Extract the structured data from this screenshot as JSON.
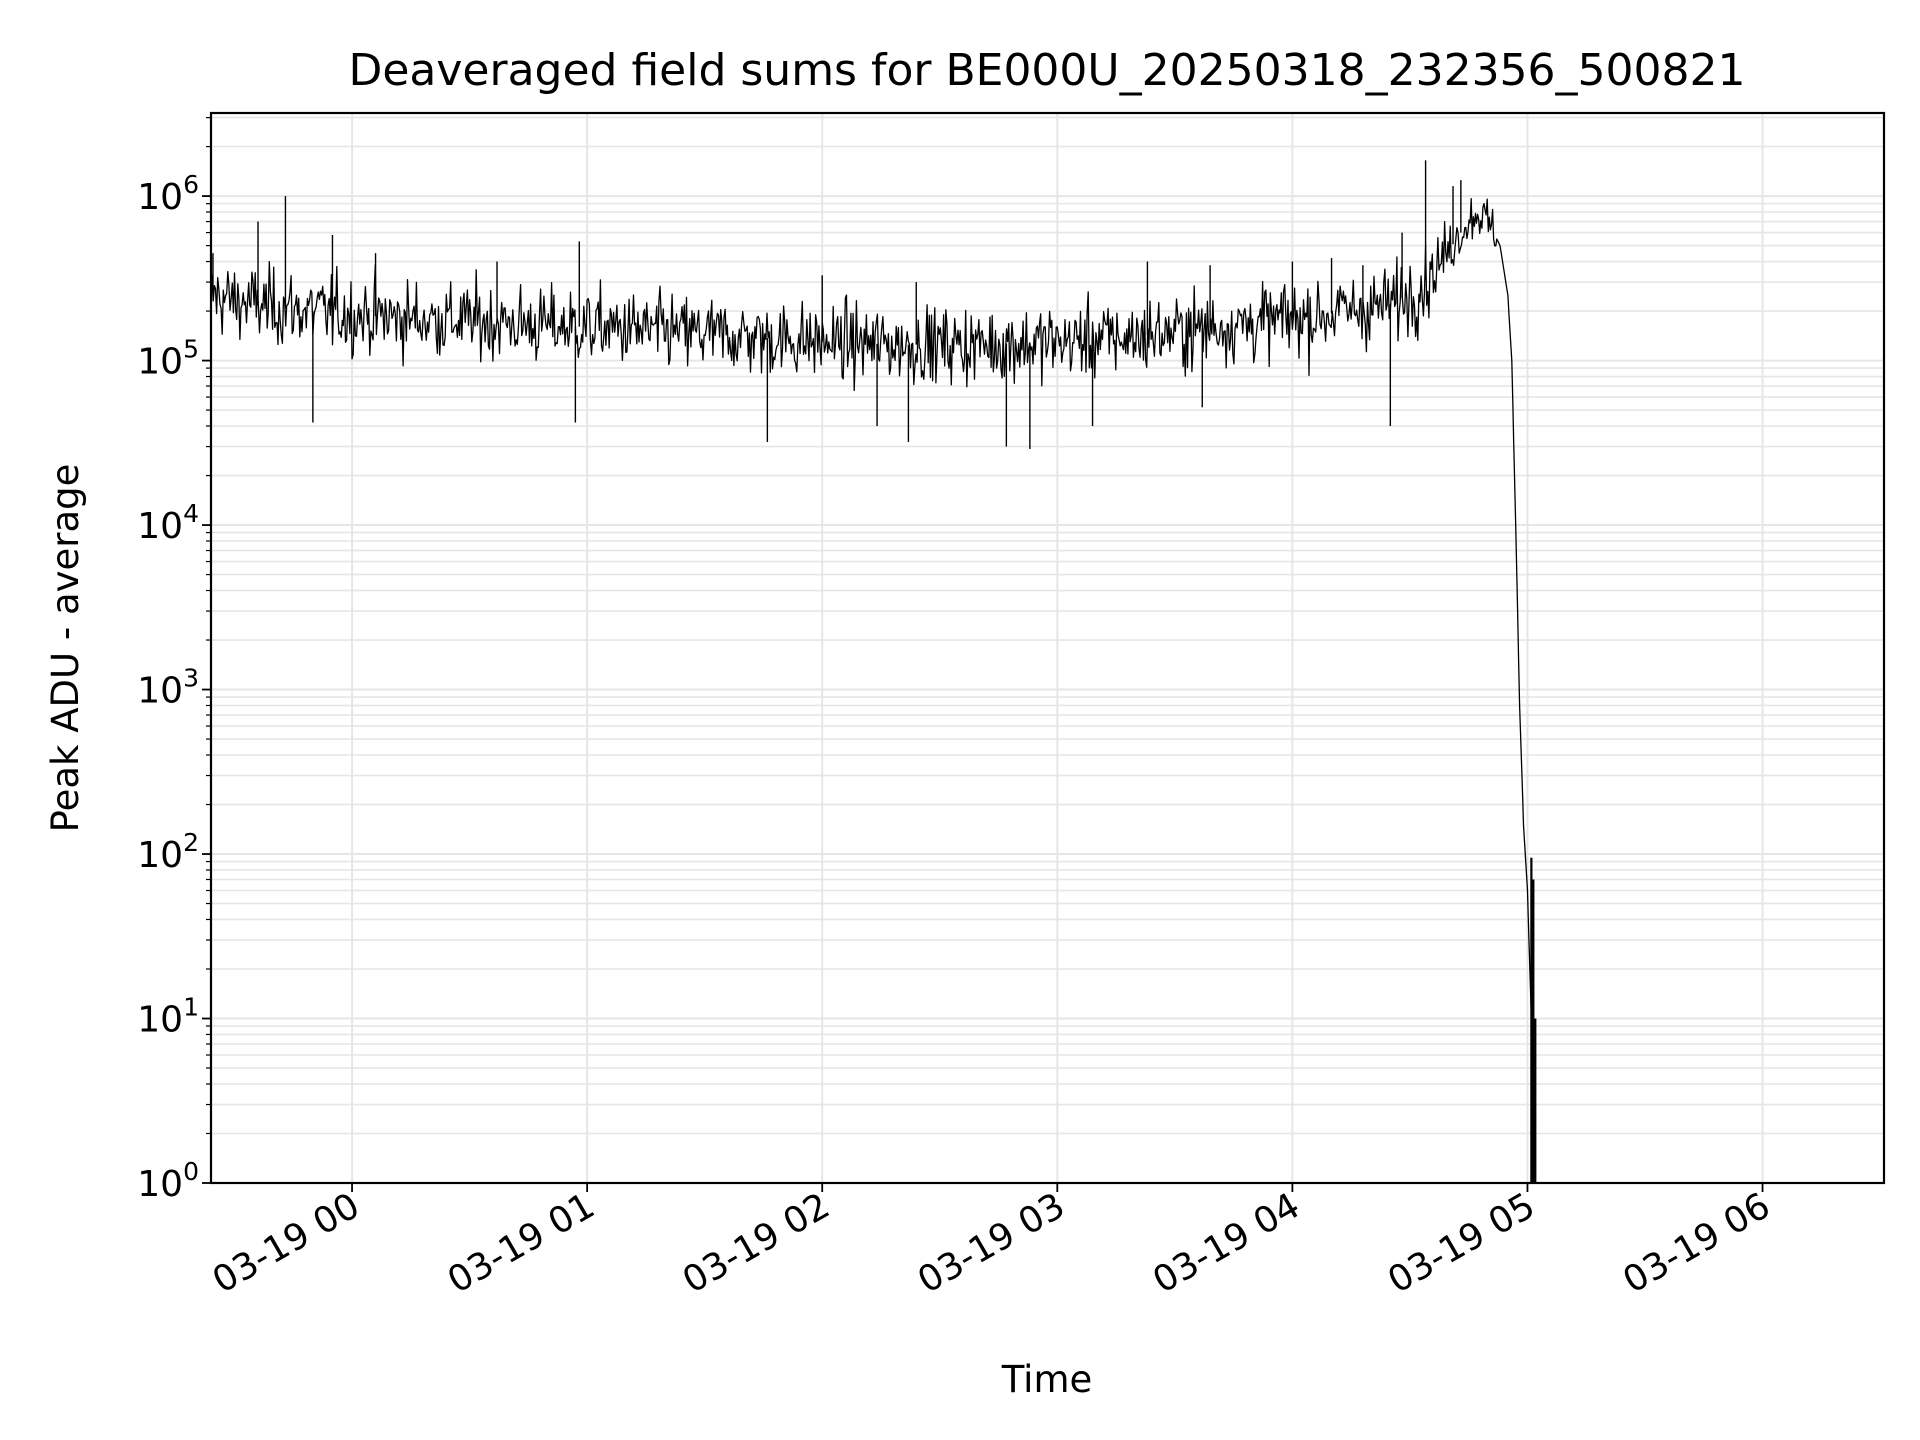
{
  "chart_data": {
    "type": "line",
    "title": "Deaveraged field sums for BE000U_20250318_232356_500821",
    "xlabel": "Time",
    "ylabel": "Peak ADU - average",
    "x_axis_type": "time",
    "x_range": [
      "2025-03-18T23:24:00",
      "2025-03-19T06:31:00"
    ],
    "y_scale": "log",
    "ylim": [
      1,
      3200000
    ],
    "grid": true,
    "x_ticks": [
      {
        "time": "2025-03-19T00:00:00",
        "label": "03-19 00"
      },
      {
        "time": "2025-03-19T01:00:00",
        "label": "03-19 01"
      },
      {
        "time": "2025-03-19T02:00:00",
        "label": "03-19 02"
      },
      {
        "time": "2025-03-19T03:00:00",
        "label": "03-19 03"
      },
      {
        "time": "2025-03-19T04:00:00",
        "label": "03-19 04"
      },
      {
        "time": "2025-03-19T05:00:00",
        "label": "03-19 05"
      },
      {
        "time": "2025-03-19T06:00:00",
        "label": "03-19 06"
      }
    ],
    "y_ticks": [
      {
        "value": 1,
        "base": "10",
        "exp": "0"
      },
      {
        "value": 10,
        "base": "10",
        "exp": "1"
      },
      {
        "value": 100,
        "base": "10",
        "exp": "2"
      },
      {
        "value": 1000,
        "base": "10",
        "exp": "3"
      },
      {
        "value": 10000,
        "base": "10",
        "exp": "4"
      },
      {
        "value": 100000,
        "base": "10",
        "exp": "5"
      },
      {
        "value": 1000000,
        "base": "10",
        "exp": "6"
      }
    ],
    "series": [
      {
        "color": "#000000",
        "points": [
          [
            "2025-03-18T23:24:00",
            250000
          ],
          [
            "2025-03-18T23:30:00",
            230000
          ],
          [
            "2025-03-18T23:40:00",
            210000
          ],
          [
            "2025-03-18T23:50:00",
            200000
          ],
          [
            "2025-03-19T00:00:00",
            190000
          ],
          [
            "2025-03-19T00:15:00",
            180000
          ],
          [
            "2025-03-19T00:30:00",
            175000
          ],
          [
            "2025-03-19T00:45:00",
            165000
          ],
          [
            "2025-03-19T01:00:00",
            160000
          ],
          [
            "2025-03-19T01:20:00",
            150000
          ],
          [
            "2025-03-19T01:40:00",
            140000
          ],
          [
            "2025-03-19T02:00:00",
            130000
          ],
          [
            "2025-03-19T02:20:00",
            125000
          ],
          [
            "2025-03-19T02:40:00",
            125000
          ],
          [
            "2025-03-19T03:00:00",
            130000
          ],
          [
            "2025-03-19T03:20:00",
            140000
          ],
          [
            "2025-03-19T03:40:00",
            160000
          ],
          [
            "2025-03-19T04:00:00",
            180000
          ],
          [
            "2025-03-19T04:15:00",
            200000
          ],
          [
            "2025-03-19T04:25:00",
            220000
          ],
          [
            "2025-03-19T04:32:00",
            270000
          ],
          [
            "2025-03-19T04:38:00",
            400000
          ],
          [
            "2025-03-19T04:44:00",
            650000
          ],
          [
            "2025-03-19T04:47:00",
            800000
          ],
          [
            "2025-03-19T04:50:00",
            700000
          ],
          [
            "2025-03-19T04:53:00",
            500000
          ],
          [
            "2025-03-19T04:55:00",
            250000
          ],
          [
            "2025-03-19T04:56:00",
            100000
          ],
          [
            "2025-03-19T04:57:00",
            10000
          ],
          [
            "2025-03-19T04:58:00",
            800
          ],
          [
            "2025-03-19T04:59:00",
            150
          ],
          [
            "2025-03-19T05:00:00",
            60
          ],
          [
            "2025-03-19T05:01:00",
            10
          ],
          [
            "2025-03-19T05:02:00",
            1
          ]
        ],
        "spikes": [
          [
            "2025-03-18T23:43:00",
            1000000
          ],
          [
            "2025-03-18T23:24:30",
            450000
          ],
          [
            "2025-03-18T23:36:00",
            700000
          ],
          [
            "2025-03-18T23:55:00",
            580000
          ],
          [
            "2025-03-19T00:06:00",
            450000
          ],
          [
            "2025-03-19T00:37:00",
            400000
          ],
          [
            "2025-03-19T00:58:00",
            530000
          ],
          [
            "2025-03-19T02:00:00",
            330000
          ],
          [
            "2025-03-19T02:24:00",
            300000
          ],
          [
            "2025-03-19T03:23:00",
            400000
          ],
          [
            "2025-03-19T03:39:00",
            380000
          ],
          [
            "2025-03-19T04:10:00",
            420000
          ],
          [
            "2025-03-19T04:18:00",
            380000
          ],
          [
            "2025-03-19T04:28:00",
            600000
          ],
          [
            "2025-03-19T04:34:00",
            1650000
          ],
          [
            "2025-03-19T04:41:00",
            1150000
          ],
          [
            "2025-03-19T04:43:00",
            1250000
          ],
          [
            "2025-03-19T04:00:00",
            400000
          ],
          [
            "2025-03-18T23:50:00",
            42000
          ],
          [
            "2025-03-19T00:57:00",
            42000
          ],
          [
            "2025-03-19T01:46:00",
            32000
          ],
          [
            "2025-03-19T02:14:00",
            40000
          ],
          [
            "2025-03-19T02:22:00",
            32000
          ],
          [
            "2025-03-19T02:47:00",
            30000
          ],
          [
            "2025-03-19T02:53:00",
            29000
          ],
          [
            "2025-03-19T03:09:00",
            40000
          ],
          [
            "2025-03-19T03:37:00",
            52000
          ],
          [
            "2025-03-19T04:25:00",
            40000
          ]
        ]
      }
    ]
  }
}
